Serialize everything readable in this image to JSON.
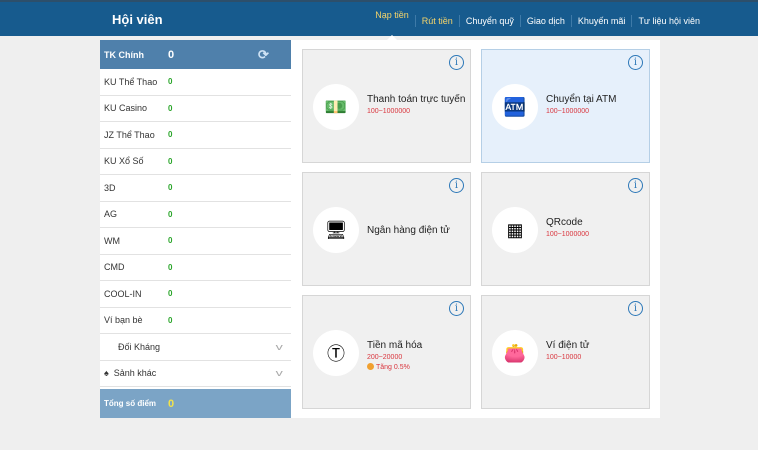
{
  "header": {
    "title": "Hội viên",
    "nav": [
      "Nạp tiền",
      "Rút tiền",
      "Chuyển quỹ",
      "Giao dịch",
      "Khuyến mãi",
      "Tư liệu hội viên"
    ]
  },
  "sidebar": {
    "main_label": "TK Chính",
    "main_value": "0",
    "rows": [
      {
        "label": "KU Thể Thao",
        "value": "0"
      },
      {
        "label": "KU Casino",
        "value": "0"
      },
      {
        "label": "JZ Thể Thao",
        "value": "0"
      },
      {
        "label": "KU Xổ Số",
        "value": "0"
      },
      {
        "label": "3D",
        "value": "0"
      },
      {
        "label": "AG",
        "value": "0"
      },
      {
        "label": "WM",
        "value": "0"
      },
      {
        "label": "CMD",
        "value": "0"
      },
      {
        "label": "COOL-IN",
        "value": "0"
      },
      {
        "label": "Ví bạn bè",
        "value": "0"
      }
    ],
    "doi_khang": "Đối Kháng",
    "sanh_khac": "Sảnh khác",
    "total_label": "Tổng số điểm",
    "total_value": "0"
  },
  "cards": [
    {
      "name": "Thanh toán trực tuyến",
      "range": "100~1000000",
      "icon": "money-phone-icon"
    },
    {
      "name": "Chuyển tại ATM",
      "range": "100~1000000",
      "icon": "atm-icon",
      "selected": true
    },
    {
      "name": "Ngân hàng điện tử",
      "range": "",
      "icon": "monitor-dollar-icon"
    },
    {
      "name": "QRcode",
      "range": "100~1000000",
      "icon": "qrcode-icon"
    },
    {
      "name": "Tiền mã hóa",
      "range": "200~20000",
      "bonus": "Tăng 0.5%",
      "icon": "tether-icon"
    },
    {
      "name": "Ví điện tử",
      "range": "100~10000",
      "icon": "wallet-icon"
    }
  ],
  "colors": {
    "header": "#175b8e",
    "accent": "#f5d46a",
    "range": "#d9363e"
  }
}
